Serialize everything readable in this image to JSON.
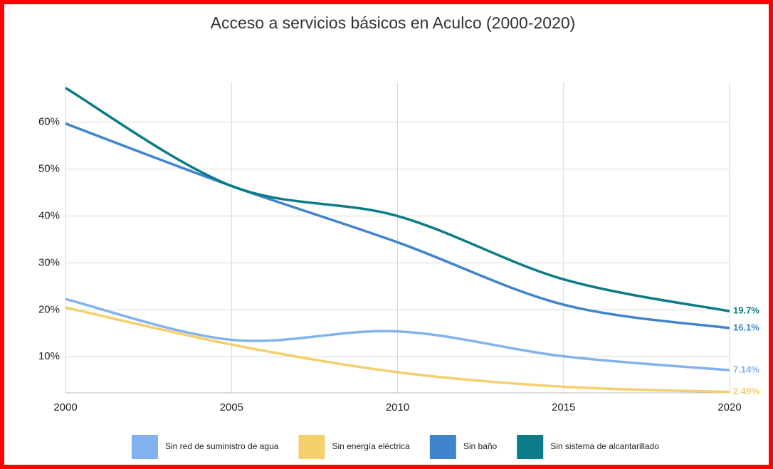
{
  "chart_data": {
    "type": "line",
    "title": "Acceso a servicios básicos en Aculco (2000-2020)",
    "x": [
      2000,
      2005,
      2010,
      2015,
      2020
    ],
    "xlim": [
      2000,
      2020
    ],
    "xticks": [
      2000,
      2005,
      2010,
      2015,
      2020
    ],
    "ylim": [
      2.3,
      68.6
    ],
    "yticks": [
      {
        "value": 10,
        "label": "10%"
      },
      {
        "value": 20,
        "label": "20%"
      },
      {
        "value": 30,
        "label": "30%"
      },
      {
        "value": 40,
        "label": "40%"
      },
      {
        "value": 50,
        "label": "50%"
      },
      {
        "value": 60,
        "label": "60%"
      }
    ],
    "grid": true,
    "legend": "bottom",
    "series": [
      {
        "name": "Sin red de suministro de agua",
        "color": "#82b2ee",
        "values": [
          22.3,
          13.6,
          15.4,
          10.1,
          7.14
        ],
        "value_labels": [
          null,
          null,
          null,
          null,
          "7.14%"
        ]
      },
      {
        "name": "Sin energía eléctrica",
        "color": "#f5cf6c",
        "values": [
          20.5,
          12.6,
          6.7,
          3.6,
          2.49
        ],
        "value_labels": [
          null,
          null,
          null,
          null,
          "2.49%"
        ]
      },
      {
        "name": "Sin baño",
        "color": "#3f84cc",
        "values": [
          59.7,
          46.4,
          34.4,
          21.1,
          16.1
        ],
        "value_labels": [
          null,
          null,
          null,
          null,
          "16.1%"
        ]
      },
      {
        "name": "Sin sistema de alcantarillado",
        "color": "#0a7c88",
        "values": [
          67.3,
          46.4,
          40.0,
          26.5,
          19.7
        ],
        "value_labels": [
          null,
          null,
          null,
          null,
          "19.7%"
        ]
      }
    ]
  }
}
